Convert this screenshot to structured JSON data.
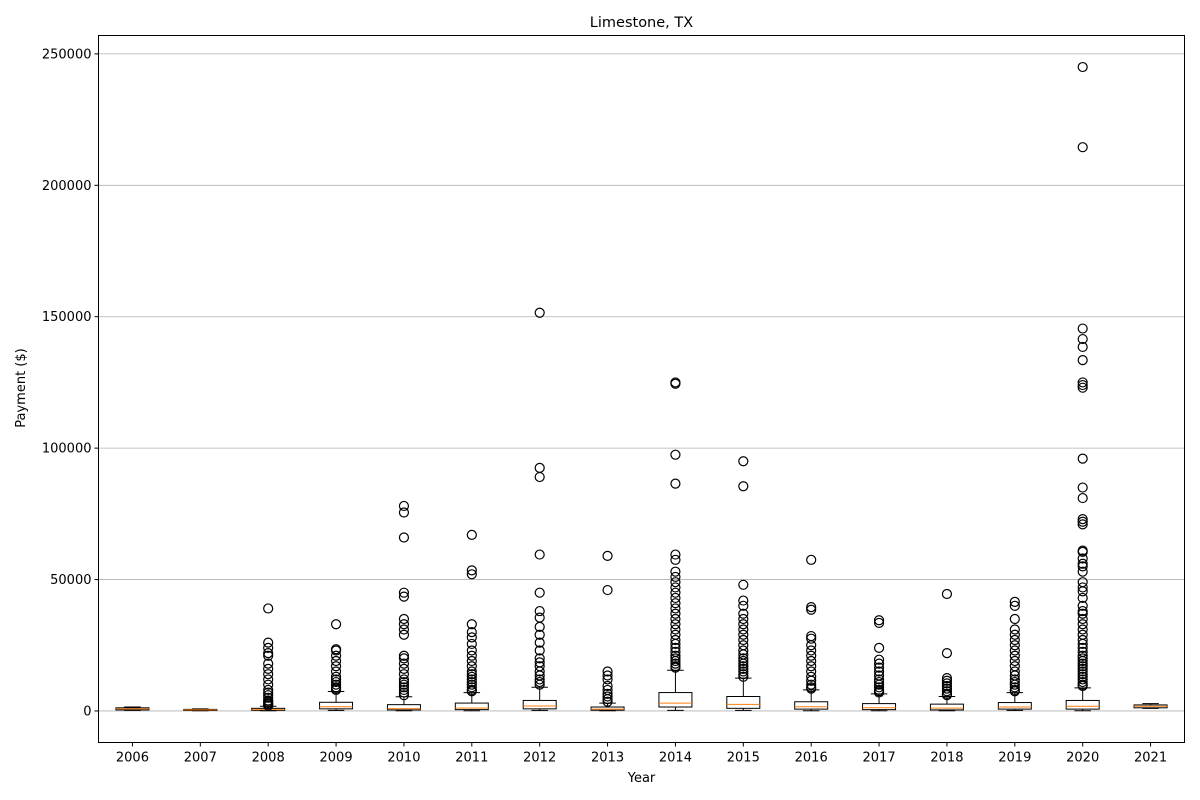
{
  "chart_data": {
    "type": "box",
    "title": "Limestone, TX",
    "xlabel": "Year",
    "ylabel": "Payment ($)",
    "categories": [
      "2006",
      "2007",
      "2008",
      "2009",
      "2010",
      "2011",
      "2012",
      "2013",
      "2014",
      "2015",
      "2016",
      "2017",
      "2018",
      "2019",
      "2020",
      "2021"
    ],
    "yticks": [
      0,
      50000,
      100000,
      150000,
      200000,
      250000
    ],
    "ylim": [
      -12000,
      257000
    ],
    "grid": "y-major",
    "colors": {
      "box": "#000000",
      "median": "#ff7f0e",
      "grid": "#b0b0b0",
      "axis": "#000000"
    },
    "boxes": [
      {
        "year": "2006",
        "whislo": 200,
        "q1": 400,
        "med": 800,
        "q3": 1200,
        "whishi": 1500,
        "fliers": []
      },
      {
        "year": "2007",
        "whislo": 100,
        "q1": 200,
        "med": 400,
        "q3": 600,
        "whishi": 800,
        "fliers": []
      },
      {
        "year": "2008",
        "whislo": 100,
        "q1": 250,
        "med": 500,
        "q3": 1000,
        "whishi": 1800,
        "fliers": [
          39000,
          26000,
          24000,
          22000,
          21000,
          18000,
          16000,
          14000,
          12000,
          10000,
          8000,
          7000,
          6000,
          5000,
          4000,
          3500,
          3000,
          2500,
          2000
        ]
      },
      {
        "year": "2009",
        "whislo": 200,
        "q1": 800,
        "med": 1600,
        "q3": 3300,
        "whishi": 7400,
        "fliers": [
          33000,
          23500,
          23000,
          21000,
          19000,
          17000,
          15000,
          13000,
          12000,
          11000,
          10000,
          9000,
          8500,
          8000
        ]
      },
      {
        "year": "2010",
        "whislo": 100,
        "q1": 400,
        "med": 900,
        "q3": 2400,
        "whishi": 5400,
        "fliers": [
          78000,
          75500,
          66000,
          45000,
          43500,
          35000,
          33000,
          31000,
          29000,
          21000,
          20000,
          18000,
          16000,
          14000,
          12000,
          11000,
          10000,
          9000,
          8000,
          7000,
          6000
        ]
      },
      {
        "year": "2011",
        "whislo": 100,
        "q1": 500,
        "med": 1100,
        "q3": 3000,
        "whishi": 7000,
        "fliers": [
          67000,
          53500,
          52000,
          33000,
          30000,
          28000,
          25500,
          23000,
          21000,
          19000,
          17000,
          15000,
          14000,
          13000,
          12000,
          11000,
          10000,
          9000,
          8000,
          7500
        ]
      },
      {
        "year": "2012",
        "whislo": 200,
        "q1": 800,
        "med": 1900,
        "q3": 4000,
        "whishi": 9000,
        "fliers": [
          151500,
          92500,
          89000,
          59500,
          45000,
          38000,
          35500,
          32000,
          29000,
          26000,
          23000,
          20000,
          18500,
          17000,
          15000,
          13500,
          12000,
          11000,
          10000
        ]
      },
      {
        "year": "2013",
        "whislo": 100,
        "q1": 300,
        "med": 700,
        "q3": 1500,
        "whishi": 3000,
        "fliers": [
          59000,
          46000,
          15000,
          13500,
          12000,
          9500,
          8000,
          6500,
          5500,
          4500,
          3500
        ]
      },
      {
        "year": "2014",
        "whislo": 200,
        "q1": 1500,
        "med": 3000,
        "q3": 7000,
        "whishi": 15500,
        "fliers": [
          125000,
          124500,
          97500,
          86500,
          59500,
          57500,
          53000,
          51000,
          49000,
          47000,
          45000,
          43000,
          41000,
          39000,
          37000,
          35000,
          33000,
          31000,
          29000,
          27000,
          25500,
          24000,
          22500,
          21000,
          20000,
          19000,
          18000,
          17000,
          16500
        ]
      },
      {
        "year": "2015",
        "whislo": 200,
        "q1": 1000,
        "med": 2500,
        "q3": 5500,
        "whishi": 12500,
        "fliers": [
          95000,
          85500,
          48000,
          42000,
          40000,
          37000,
          35000,
          33000,
          31000,
          29000,
          27000,
          25000,
          23000,
          21500,
          20000,
          19000,
          18000,
          17000,
          16000,
          15000,
          14000,
          13000
        ]
      },
      {
        "year": "2016",
        "whislo": 100,
        "q1": 700,
        "med": 1600,
        "q3": 3500,
        "whishi": 8000,
        "fliers": [
          57500,
          39500,
          38500,
          28500,
          27500,
          25000,
          23000,
          21000,
          19000,
          17000,
          15000,
          13000,
          11500,
          10000,
          9000,
          8500
        ]
      },
      {
        "year": "2017",
        "whislo": 100,
        "q1": 500,
        "med": 1200,
        "q3": 2800,
        "whishi": 6500,
        "fliers": [
          34500,
          33500,
          24000,
          19500,
          18000,
          16500,
          15000,
          13500,
          12000,
          11000,
          10000,
          9000,
          8000,
          7500,
          7000
        ]
      },
      {
        "year": "2018",
        "whislo": 100,
        "q1": 400,
        "med": 1100,
        "q3": 2600,
        "whishi": 5500,
        "fliers": [
          44500,
          22000,
          12500,
          11500,
          10500,
          9500,
          8500,
          7500,
          6500,
          6000
        ]
      },
      {
        "year": "2019",
        "whislo": 200,
        "q1": 700,
        "med": 1500,
        "q3": 3200,
        "whishi": 7000,
        "fliers": [
          41500,
          40000,
          35000,
          31000,
          29000,
          27000,
          25000,
          23000,
          21000,
          19000,
          17000,
          15000,
          13500,
          12000,
          11000,
          10000,
          9000,
          8000,
          7500
        ]
      },
      {
        "year": "2020",
        "whislo": 100,
        "q1": 700,
        "med": 1800,
        "q3": 4000,
        "whishi": 8800,
        "fliers": [
          245000,
          214500,
          145500,
          141500,
          138500,
          133500,
          125000,
          124000,
          123000,
          96000,
          85000,
          81000,
          73000,
          72000,
          71000,
          61000,
          60500,
          58000,
          56000,
          55000,
          53000,
          49000,
          47000,
          45500,
          43000,
          40000,
          38000,
          37000,
          35000,
          33000,
          31000,
          29000,
          27000,
          25500,
          24000,
          22500,
          21000,
          20000,
          19000,
          18000,
          17000,
          16000,
          15000,
          14000,
          13000,
          12000,
          11000,
          10000,
          9500
        ]
      },
      {
        "year": "2021",
        "whislo": 1000,
        "q1": 1200,
        "med": 1800,
        "q3": 2300,
        "whishi": 2800,
        "fliers": []
      }
    ]
  }
}
